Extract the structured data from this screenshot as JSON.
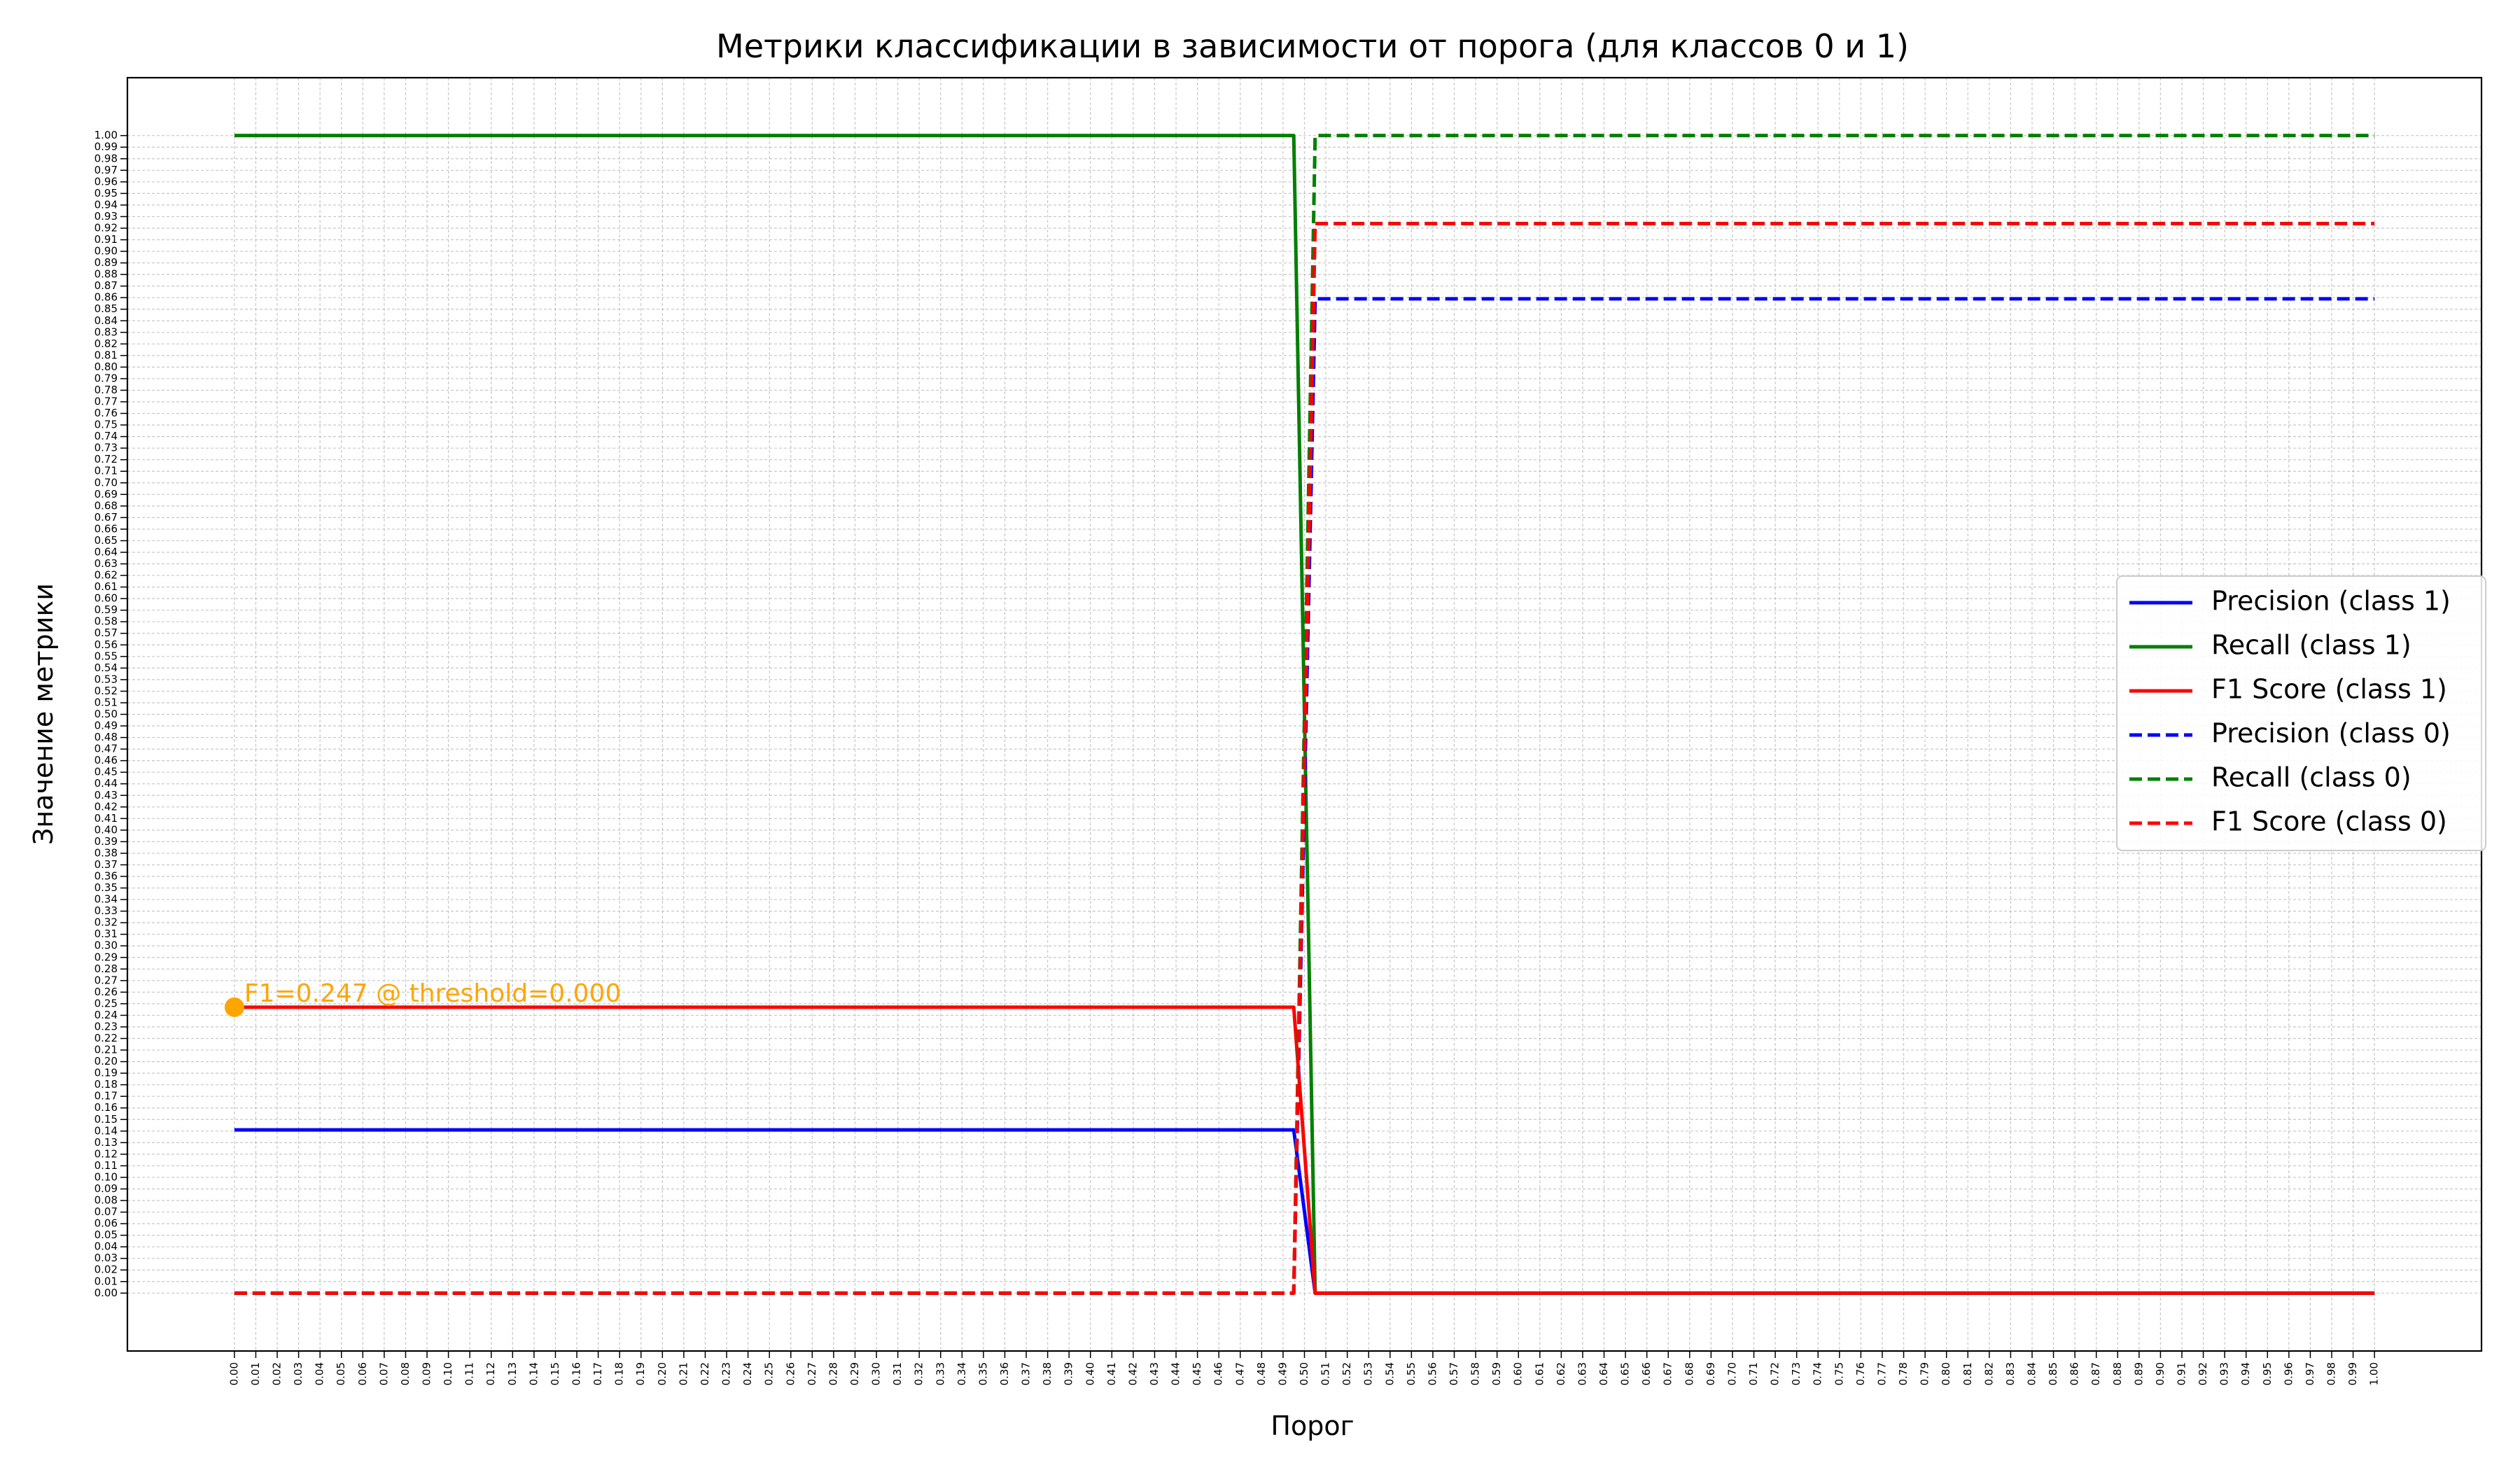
{
  "chart_data": {
    "type": "line",
    "title": "Метрики классификации в зависимости от порога (для классов 0 и 1)",
    "xlabel": "Порог",
    "ylabel": "Значение метрики",
    "xlim": [
      -0.05,
      1.05
    ],
    "ylim": [
      -0.05,
      1.05
    ],
    "x_ticks": [
      0.0,
      0.01,
      0.02,
      0.03,
      0.04,
      0.05,
      0.06,
      0.07,
      0.08,
      0.09,
      0.1,
      0.11,
      0.12,
      0.13,
      0.14,
      0.15,
      0.16,
      0.17,
      0.18,
      0.19,
      0.2,
      0.21,
      0.22,
      0.23,
      0.24,
      0.25,
      0.26,
      0.27,
      0.28,
      0.29,
      0.3,
      0.31,
      0.32,
      0.33,
      0.34,
      0.35,
      0.36,
      0.37,
      0.38,
      0.39,
      0.4,
      0.41,
      0.42,
      0.43,
      0.44,
      0.45,
      0.46,
      0.47,
      0.48,
      0.49,
      0.5,
      0.51,
      0.52,
      0.53,
      0.54,
      0.55,
      0.56,
      0.57,
      0.58,
      0.59,
      0.6,
      0.61,
      0.62,
      0.63,
      0.64,
      0.65,
      0.66,
      0.67,
      0.68,
      0.69,
      0.7,
      0.71,
      0.72,
      0.73,
      0.74,
      0.75,
      0.76,
      0.77,
      0.78,
      0.79,
      0.8,
      0.81,
      0.82,
      0.83,
      0.84,
      0.85,
      0.86,
      0.87,
      0.88,
      0.89,
      0.9,
      0.91,
      0.92,
      0.93,
      0.94,
      0.95,
      0.96,
      0.97,
      0.98,
      0.99,
      1.0
    ],
    "y_ticks": [
      0.0,
      0.01,
      0.02,
      0.03,
      0.04,
      0.05,
      0.06,
      0.07,
      0.08,
      0.09,
      0.1,
      0.11,
      0.12,
      0.13,
      0.14,
      0.15,
      0.16,
      0.17,
      0.18,
      0.19,
      0.2,
      0.21,
      0.22,
      0.23,
      0.24,
      0.25,
      0.26,
      0.27,
      0.28,
      0.29,
      0.3,
      0.31,
      0.32,
      0.33,
      0.34,
      0.35,
      0.36,
      0.37,
      0.38,
      0.39,
      0.4,
      0.41,
      0.42,
      0.43,
      0.44,
      0.45,
      0.46,
      0.47,
      0.48,
      0.49,
      0.5,
      0.51,
      0.52,
      0.53,
      0.54,
      0.55,
      0.56,
      0.57,
      0.58,
      0.59,
      0.6,
      0.61,
      0.62,
      0.63,
      0.64,
      0.65,
      0.66,
      0.67,
      0.68,
      0.69,
      0.7,
      0.71,
      0.72,
      0.73,
      0.74,
      0.75,
      0.76,
      0.77,
      0.78,
      0.79,
      0.8,
      0.81,
      0.82,
      0.83,
      0.84,
      0.85,
      0.86,
      0.87,
      0.88,
      0.89,
      0.9,
      0.91,
      0.92,
      0.93,
      0.94,
      0.95,
      0.96,
      0.97,
      0.98,
      0.99,
      1.0
    ],
    "grid": true,
    "legend_position": "center-right",
    "series": [
      {
        "name": "Precision (class 1)",
        "color": "#0000ff",
        "linestyle": "solid",
        "x": [
          0.0,
          0.495,
          0.505,
          1.0
        ],
        "y": [
          0.141,
          0.141,
          0.0,
          0.0
        ]
      },
      {
        "name": "Recall (class 1)",
        "color": "#008000",
        "linestyle": "solid",
        "x": [
          0.0,
          0.495,
          0.505,
          1.0
        ],
        "y": [
          1.0,
          1.0,
          0.0,
          0.0
        ]
      },
      {
        "name": "F1 Score (class 1)",
        "color": "#ff0000",
        "linestyle": "solid",
        "x": [
          0.0,
          0.495,
          0.505,
          1.0
        ],
        "y": [
          0.247,
          0.247,
          0.0,
          0.0
        ]
      },
      {
        "name": "Precision (class 0)",
        "color": "#0000ff",
        "linestyle": "dashed",
        "x": [
          0.0,
          0.495,
          0.505,
          1.0
        ],
        "y": [
          0.0,
          0.0,
          0.859,
          0.859
        ]
      },
      {
        "name": "Recall (class 0)",
        "color": "#008000",
        "linestyle": "dashed",
        "x": [
          0.0,
          0.495,
          0.505,
          1.0
        ],
        "y": [
          0.0,
          0.0,
          1.0,
          1.0
        ]
      },
      {
        "name": "F1 Score (class 0)",
        "color": "#ff0000",
        "linestyle": "dashed",
        "x": [
          0.0,
          0.495,
          0.505,
          1.0
        ],
        "y": [
          0.0,
          0.0,
          0.924,
          0.924
        ]
      }
    ],
    "annotations": [
      {
        "text": "F1=0.247 @ threshold=0.000",
        "x": 0.0,
        "y": 0.247,
        "color": "#ffa500",
        "marker": true
      }
    ]
  }
}
